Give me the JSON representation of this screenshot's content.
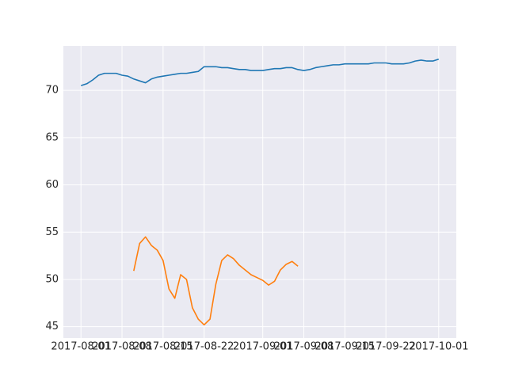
{
  "chart_data": {
    "type": "line",
    "x": [
      "2017-08-01",
      "2017-08-02",
      "2017-08-03",
      "2017-08-04",
      "2017-08-05",
      "2017-08-06",
      "2017-08-07",
      "2017-08-08",
      "2017-08-09",
      "2017-08-10",
      "2017-08-11",
      "2017-08-12",
      "2017-08-13",
      "2017-08-14",
      "2017-08-15",
      "2017-08-16",
      "2017-08-17",
      "2017-08-18",
      "2017-08-19",
      "2017-08-20",
      "2017-08-21",
      "2017-08-22",
      "2017-08-23",
      "2017-08-24",
      "2017-08-25",
      "2017-08-26",
      "2017-08-27",
      "2017-08-28",
      "2017-08-29",
      "2017-08-30",
      "2017-08-31",
      "2017-09-01",
      "2017-09-02",
      "2017-09-03",
      "2017-09-04",
      "2017-09-05",
      "2017-09-06",
      "2017-09-07",
      "2017-09-08",
      "2017-09-09",
      "2017-09-10",
      "2017-09-11",
      "2017-09-12",
      "2017-09-13",
      "2017-09-14",
      "2017-09-15",
      "2017-09-16",
      "2017-09-17",
      "2017-09-18",
      "2017-09-19",
      "2017-09-20",
      "2017-09-21",
      "2017-09-22",
      "2017-09-23",
      "2017-09-24",
      "2017-09-25",
      "2017-09-26",
      "2017-09-27",
      "2017-09-28",
      "2017-09-29",
      "2017-09-30",
      "2017-10-01"
    ],
    "series": [
      {
        "color": "#1f77b4",
        "values": [
          70.5,
          70.7,
          71.1,
          71.6,
          71.8,
          71.8,
          71.8,
          71.6,
          71.5,
          71.2,
          71.0,
          70.8,
          71.2,
          71.4,
          71.5,
          71.6,
          71.7,
          71.8,
          71.8,
          71.9,
          72.0,
          72.5,
          72.5,
          72.5,
          72.4,
          72.4,
          72.3,
          72.2,
          72.2,
          72.1,
          72.1,
          72.1,
          72.2,
          72.3,
          72.3,
          72.4,
          72.4,
          72.2,
          72.1,
          72.2,
          72.4,
          72.5,
          72.6,
          72.7,
          72.7,
          72.8,
          72.8,
          72.8,
          72.8,
          72.8,
          72.9,
          72.9,
          72.9,
          72.8,
          72.8,
          72.8,
          72.9,
          73.1,
          73.2,
          73.1,
          73.1,
          73.3
        ]
      },
      {
        "color": "#ff7f0e",
        "values": [
          null,
          null,
          null,
          null,
          null,
          null,
          null,
          null,
          null,
          50.9,
          53.8,
          54.5,
          53.6,
          53.1,
          52.0,
          49.0,
          48.0,
          50.5,
          50.0,
          47.0,
          45.8,
          45.2,
          45.8,
          49.5,
          52.0,
          52.6,
          52.2,
          51.5,
          51.0,
          50.5,
          50.2,
          49.9,
          49.4,
          49.8,
          51.0,
          51.6,
          51.9,
          51.4,
          null,
          null,
          null,
          null,
          null,
          null,
          null,
          null,
          null,
          null,
          null,
          null,
          null,
          null,
          null,
          null,
          null,
          null,
          null,
          null,
          null,
          null,
          null,
          null
        ]
      }
    ],
    "xlim": [
      "2017-07-29",
      "2017-10-04"
    ],
    "xticks": [
      "2017-08-01",
      "2017-08-08",
      "2017-08-15",
      "2017-08-22",
      "2017-09-01",
      "2017-09-08",
      "2017-09-15",
      "2017-09-22",
      "2017-10-01"
    ],
    "ylim": [
      43.8,
      74.7
    ],
    "yticks": [
      45,
      50,
      55,
      60,
      65,
      70
    ],
    "grid": true
  }
}
